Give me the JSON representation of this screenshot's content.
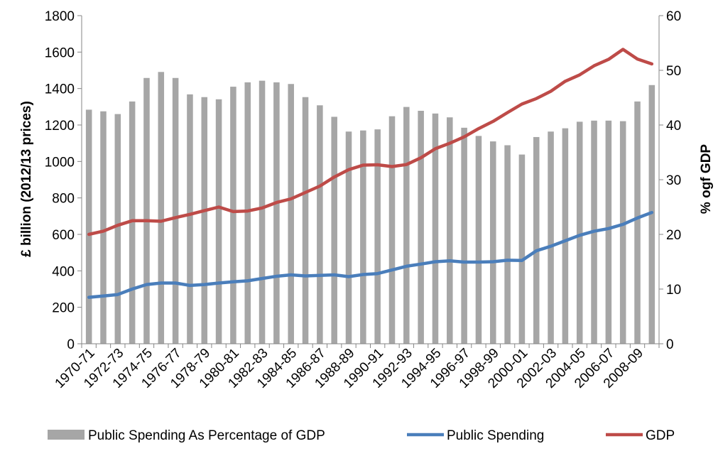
{
  "chart_data": {
    "type": "bar",
    "categories": [
      "1970-71",
      "1971-72",
      "1972-73",
      "1973-74",
      "1974-75",
      "1975-76",
      "1976-77",
      "1977-78",
      "1978-79",
      "1979-80",
      "1980-81",
      "1981-82",
      "1982-83",
      "1983-84",
      "1984-85",
      "1985-86",
      "1986-87",
      "1987-88",
      "1988-89",
      "1989-90",
      "1990-91",
      "1991-92",
      "1992-93",
      "1993-94",
      "1994-95",
      "1995-96",
      "1996-97",
      "1997-98",
      "1998-99",
      "1999-00",
      "2000-01",
      "2001-02",
      "2002-03",
      "2003-04",
      "2004-05",
      "2005-06",
      "2006-07",
      "2007-08",
      "2008-09",
      "2009-10"
    ],
    "x_tick_labels": [
      "1970-71",
      "1972-73",
      "1974-75",
      "1976-77",
      "1978-79",
      "1980-81",
      "1982-83",
      "1984-85",
      "1986-87",
      "1988-89",
      "1990-91",
      "1992-93",
      "1994-95",
      "1996-97",
      "1998-99",
      "2000-01",
      "2002-03",
      "2004-05",
      "2006-07",
      "2008-09"
    ],
    "ylabel": "£ billion (2012/13 prices)",
    "ylabel_right": "% ogf GDP",
    "ylim": [
      0,
      1800
    ],
    "ylim_right": [
      0,
      60
    ],
    "yticks": [
      0,
      200,
      400,
      600,
      800,
      1000,
      1200,
      1400,
      1600,
      1800
    ],
    "yticks_right": [
      0,
      10,
      20,
      30,
      40,
      50,
      60
    ],
    "grid": false,
    "legend_position": "bottom",
    "series": [
      {
        "name": "Public Spending As Percentage of GDP",
        "kind": "bar",
        "axis": "right",
        "color": "#a6a6a6",
        "values": [
          42.8,
          42.5,
          42.0,
          44.3,
          48.6,
          49.7,
          48.6,
          45.6,
          45.1,
          44.7,
          47.0,
          47.8,
          48.1,
          47.8,
          47.5,
          45.1,
          43.6,
          41.5,
          38.8,
          39.0,
          39.2,
          41.6,
          43.3,
          42.6,
          42.1,
          41.4,
          39.5,
          38.0,
          37.0,
          36.3,
          34.6,
          37.8,
          38.8,
          39.4,
          40.6,
          40.8,
          40.8,
          40.7,
          44.3,
          47.3
        ]
      },
      {
        "name": "Public Spending",
        "kind": "line",
        "axis": "left",
        "color": "#4a7ebb",
        "values": [
          255,
          262,
          270,
          300,
          325,
          333,
          333,
          320,
          325,
          333,
          340,
          345,
          358,
          370,
          378,
          372,
          375,
          378,
          368,
          380,
          385,
          405,
          425,
          437,
          450,
          455,
          448,
          448,
          450,
          458,
          457,
          510,
          535,
          565,
          595,
          617,
          632,
          655,
          690,
          720
        ]
      },
      {
        "name": "GDP",
        "kind": "line",
        "axis": "left",
        "color": "#be4b48",
        "values": [
          600,
          618,
          650,
          675,
          675,
          672,
          692,
          710,
          730,
          750,
          725,
          728,
          745,
          775,
          795,
          830,
          865,
          915,
          955,
          980,
          982,
          972,
          983,
          1020,
          1070,
          1100,
          1135,
          1180,
          1220,
          1268,
          1315,
          1345,
          1385,
          1440,
          1475,
          1525,
          1560,
          1615,
          1562,
          1535
        ]
      }
    ]
  }
}
